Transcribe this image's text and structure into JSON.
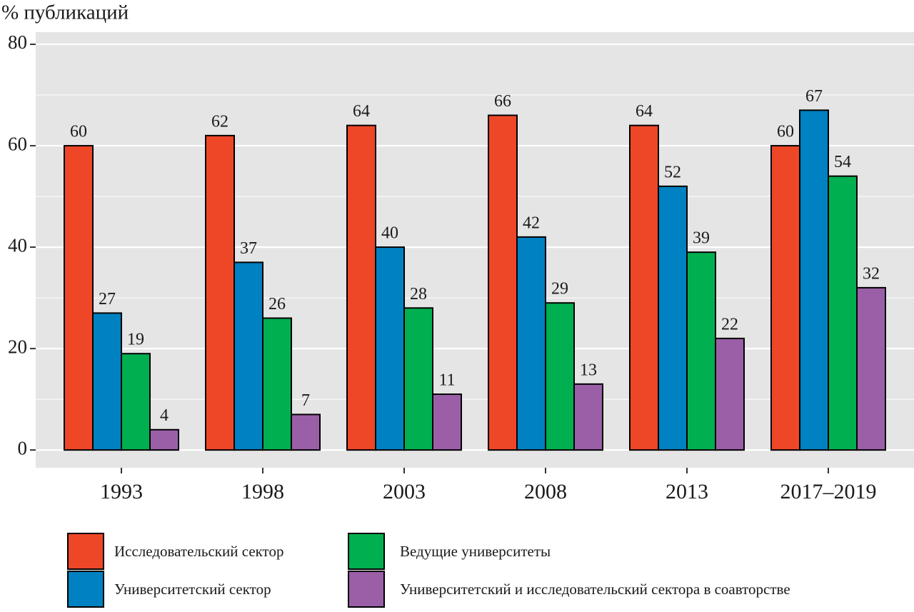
{
  "chart_data": {
    "type": "bar",
    "y_axis_label": "% публикаций",
    "categories": [
      "1993",
      "1998",
      "2003",
      "2008",
      "2013",
      "2017–2019"
    ],
    "series": [
      {
        "name": "Исследовательский сектор",
        "color": "#ee4728",
        "values": [
          60,
          62,
          64,
          66,
          64,
          60
        ]
      },
      {
        "name": "Университетский сектор",
        "color": "#0081c2",
        "values": [
          27,
          37,
          40,
          42,
          52,
          67
        ]
      },
      {
        "name": "Ведущие университеты",
        "color": "#00b050",
        "values": [
          19,
          26,
          28,
          29,
          39,
          54
        ]
      },
      {
        "name": "Университетский и исследовательский сектора в соавторстве",
        "color": "#9b5fa8",
        "values": [
          4,
          7,
          11,
          13,
          22,
          32
        ]
      }
    ],
    "ylim": [
      -3.5,
      82.4
    ],
    "yticks": [
      0,
      20,
      40,
      60,
      80
    ],
    "grid": true
  }
}
